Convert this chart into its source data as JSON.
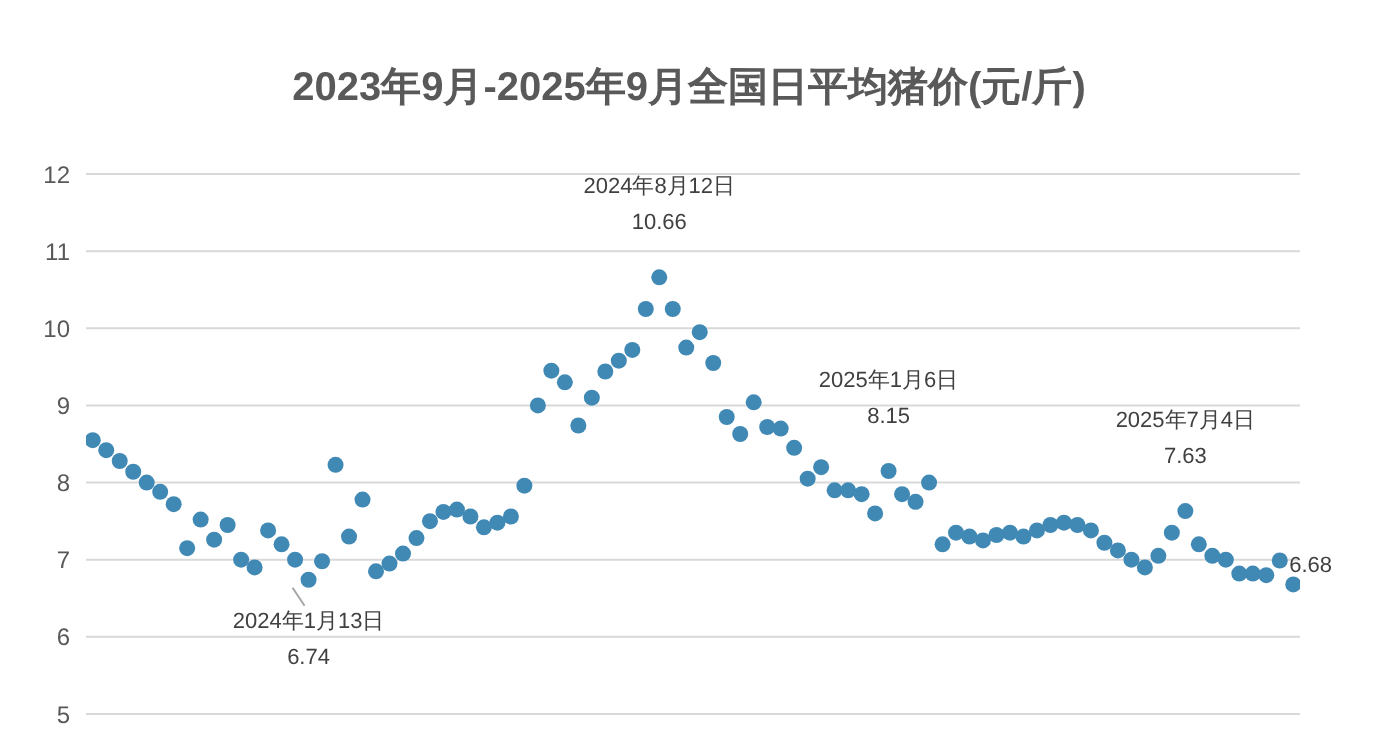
{
  "chart_data": {
    "type": "scatter",
    "title": "2023年9月-2025年9月全国日平均猪价(元/斤)",
    "categories": [
      null,
      null,
      null,
      null,
      null,
      null,
      null,
      null,
      null,
      null,
      null,
      null,
      null,
      null,
      null,
      null,
      null,
      null,
      null,
      null,
      null,
      null,
      null,
      null,
      null,
      null,
      null,
      null,
      null,
      null,
      null,
      null,
      null,
      null,
      null,
      null,
      null,
      null,
      null,
      null,
      null,
      null,
      null,
      null,
      null,
      null,
      null,
      null,
      null,
      null,
      null,
      null,
      null,
      null,
      null,
      null,
      null,
      null,
      null,
      null,
      null,
      null,
      null,
      null,
      null,
      null,
      null,
      null,
      null,
      null,
      null,
      null,
      null,
      null,
      null,
      null,
      null,
      null,
      null,
      null,
      null,
      null,
      null,
      null,
      null,
      null,
      null,
      null,
      null,
      null
    ],
    "series": [
      {
        "color": "#4189b5",
        "values": [
          8.55,
          8.42,
          8.28,
          8.14,
          8.0,
          7.88,
          7.72,
          7.15,
          7.52,
          7.26,
          7.45,
          7.0,
          6.9,
          7.38,
          7.2,
          7.0,
          6.74,
          6.98,
          8.23,
          7.3,
          7.78,
          6.85,
          6.95,
          7.08,
          7.28,
          7.5,
          7.62,
          7.65,
          7.56,
          7.42,
          7.48,
          7.56,
          7.96,
          9.0,
          9.45,
          9.3,
          8.74,
          9.1,
          9.44,
          9.58,
          9.72,
          10.25,
          10.66,
          10.25,
          9.75,
          9.95,
          9.55,
          8.85,
          8.63,
          9.04,
          8.72,
          8.7,
          8.45,
          8.05,
          8.2,
          7.9,
          7.9,
          7.85,
          7.6,
          8.15,
          7.85,
          7.75,
          8.0,
          7.2,
          7.35,
          7.3,
          7.25,
          7.32,
          7.35,
          7.3,
          7.38,
          7.45,
          7.48,
          7.45,
          7.38,
          7.22,
          7.12,
          7.0,
          6.9,
          7.05,
          7.35,
          7.63,
          7.2,
          7.05,
          7.0,
          6.82,
          6.82,
          6.8,
          6.99,
          6.68
        ]
      }
    ],
    "ylim": [
      5,
      12
    ],
    "yticks": [
      5,
      6,
      7,
      8,
      9,
      10,
      11,
      12
    ],
    "grid": "y",
    "marker": "circle",
    "tick_labels": "y",
    "annotations": [
      {
        "text": "2024年1月13日\n6.74",
        "y": 6.74
      },
      {
        "text": "2024年8月12日\n10.66",
        "y": 10.66
      },
      {
        "text": "2025年1月6日\n8.15",
        "y": 8.15
      },
      {
        "text": "2025年7月4日\n7.63",
        "y": 7.63
      },
      {
        "text": "6.68",
        "y": 6.68
      }
    ]
  }
}
